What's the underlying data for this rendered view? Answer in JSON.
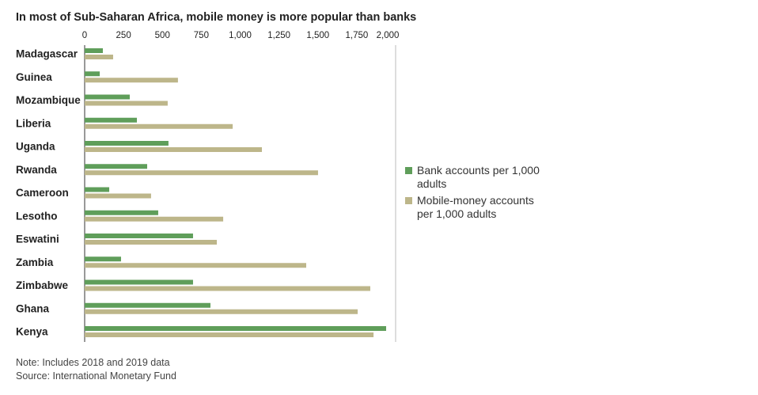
{
  "chart_data": {
    "type": "bar",
    "orientation": "horizontal",
    "title": "In most of Sub-Saharan Africa, mobile money is more popular than banks",
    "categories": [
      "Madagascar",
      "Guinea",
      "Mozambique",
      "Liberia",
      "Uganda",
      "Rwanda",
      "Cameroon",
      "Lesotho",
      "Eswatini",
      "Zambia",
      "Zimbabwe",
      "Ghana",
      "Kenya"
    ],
    "series": [
      {
        "name": "Bank accounts per 1,000 adults",
        "color": "#5f9e5a",
        "values": [
          117,
          97,
          290,
          336,
          539,
          402,
          158,
          473,
          697,
          234,
          697,
          809,
          1939
        ]
      },
      {
        "name": "Mobile-money accounts per 1,000 adults",
        "color": "#bdb68a",
        "values": [
          183,
          600,
          534,
          952,
          1140,
          1501,
          427,
          891,
          850,
          1425,
          1837,
          1756,
          1858
        ]
      }
    ],
    "xlim": [
      0,
      2000
    ],
    "xticks": [
      0,
      250,
      500,
      750,
      {
        "value": 1000,
        "label": "1,000"
      },
      {
        "value": 1250,
        "label": "1,250"
      },
      {
        "value": 1500,
        "label": "1,500"
      },
      {
        "value": 1750,
        "label": "1,750"
      },
      {
        "value": 2000,
        "label": "2,000"
      }
    ],
    "note": "Note: Includes 2018 and 2019 data",
    "source": "Source: International Monetary Fund"
  }
}
